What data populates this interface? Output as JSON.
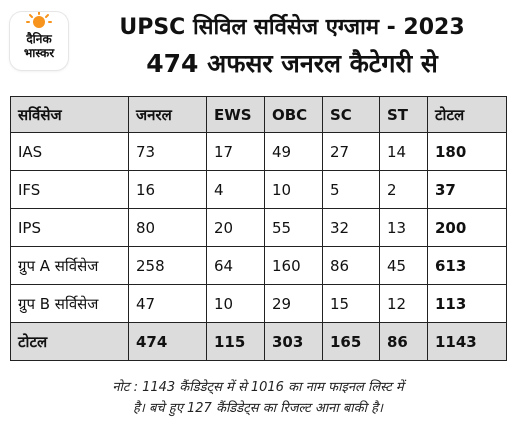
{
  "logo": {
    "line1": "दैनिक",
    "line2": "भास्कर",
    "sun_color": "#F7941D"
  },
  "header": {
    "title_line1": "UPSC सिविल सर्विसेज एग्जाम - 2023",
    "title_line2": "474 अफसर जनरल कैटेगरी से"
  },
  "table": {
    "columns": [
      "सर्विसेज",
      "जनरल",
      "EWS",
      "OBC",
      "SC",
      "ST",
      "टोटल"
    ],
    "rows": [
      [
        "IAS",
        "73",
        "17",
        "49",
        "27",
        "14",
        "180"
      ],
      [
        "IFS",
        "16",
        "4",
        "10",
        "5",
        "2",
        "37"
      ],
      [
        "IPS",
        "80",
        "20",
        "55",
        "32",
        "13",
        "200"
      ],
      [
        "ग्रुप A सर्विसेज",
        "258",
        "64",
        "160",
        "86",
        "45",
        "613"
      ],
      [
        "ग्रुप B सर्विसेज",
        "47",
        "10",
        "29",
        "15",
        "12",
        "113"
      ]
    ],
    "total_row": [
      "टोटल",
      "474",
      "115",
      "303",
      "165",
      "86",
      "1143"
    ],
    "header_bg": "#DCDCDC",
    "border_color": "#222222"
  },
  "note": {
    "line1": "नोट : 1143 कैंडिडेट्स में से 1016 का नाम फाइनल लिस्ट में",
    "line2": "है। बचे हुए 127 कैंडिडेट्स का रिजल्ट आना बाकी है।"
  }
}
